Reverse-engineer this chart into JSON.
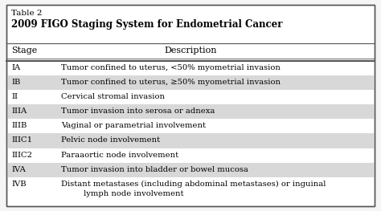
{
  "title_line1": "Table 2",
  "title_line2": "2009 FIGO Staging System for Endometrial Cancer",
  "col_headers": [
    "Stage",
    "Description"
  ],
  "rows": [
    [
      "IA",
      "Tumor confined to uterus, <50% myometrial invasion"
    ],
    [
      "IB",
      "Tumor confined to uterus, ≥50% myometrial invasion"
    ],
    [
      "II",
      "Cervical stromal invasion"
    ],
    [
      "IIIA",
      "Tumor invasion into serosa or adnexa"
    ],
    [
      "IIIB",
      "Vaginal or parametrial involvement"
    ],
    [
      "IIIC1",
      "Pelvic node involvement"
    ],
    [
      "IIIC2",
      "Paraaortic node involvement"
    ],
    [
      "IVA",
      "Tumor invasion into bladder or bowel mucosa"
    ],
    [
      "IVB",
      "Distant metastases (including abdominal metastases) or inguinal\n         lymph node involvement"
    ]
  ],
  "shaded_rows": [
    1,
    3,
    5,
    7
  ],
  "bg_color": "#f5f5f5",
  "shade_color": "#d8d8d8",
  "border_color": "#555555",
  "white_color": "#ffffff",
  "title_fontsize": 7.5,
  "title2_fontsize": 8.5,
  "header_fontsize": 8.0,
  "cell_fontsize": 7.2
}
